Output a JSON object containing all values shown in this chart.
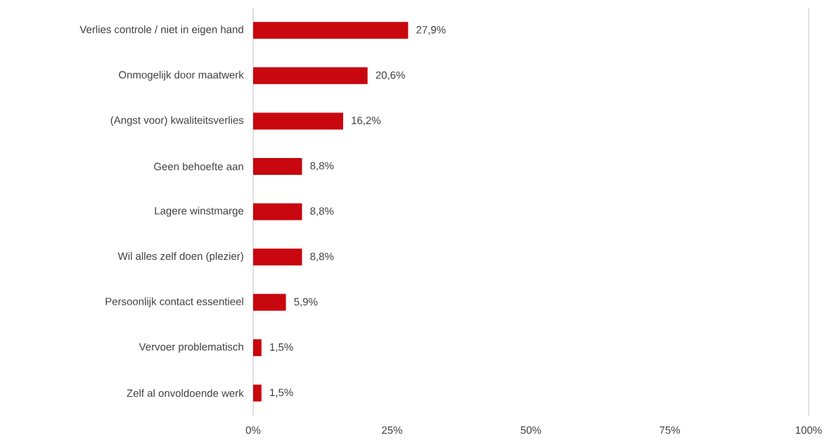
{
  "chart_data": {
    "type": "bar",
    "orientation": "horizontal",
    "categories": [
      "Verlies controle / niet in eigen hand",
      "Onmogelijk door maatwerk",
      "(Angst voor) kwaliteitsverlies",
      "Geen behoefte aan",
      "Lagere winstmarge",
      "Wil alles zelf doen (plezier)",
      "Persoonlijk contact essentieel",
      "Vervoer problematisch",
      "Zelf al onvoldoende werk"
    ],
    "values": [
      27.9,
      20.6,
      16.2,
      8.8,
      8.8,
      8.8,
      5.9,
      1.5,
      1.5
    ],
    "value_labels": [
      "27,9%",
      "20,6%",
      "16,2%",
      "8,8%",
      "8,8%",
      "8,8%",
      "5,9%",
      "1,5%",
      "1,5%"
    ],
    "color": "#c8070e",
    "xlim": [
      0,
      100
    ],
    "xticks": [
      {
        "value": 0,
        "label": "0%"
      },
      {
        "value": 25,
        "label": "25%"
      },
      {
        "value": 50,
        "label": "50%"
      },
      {
        "value": 75,
        "label": "75%"
      },
      {
        "value": 100,
        "label": "100%"
      }
    ]
  }
}
